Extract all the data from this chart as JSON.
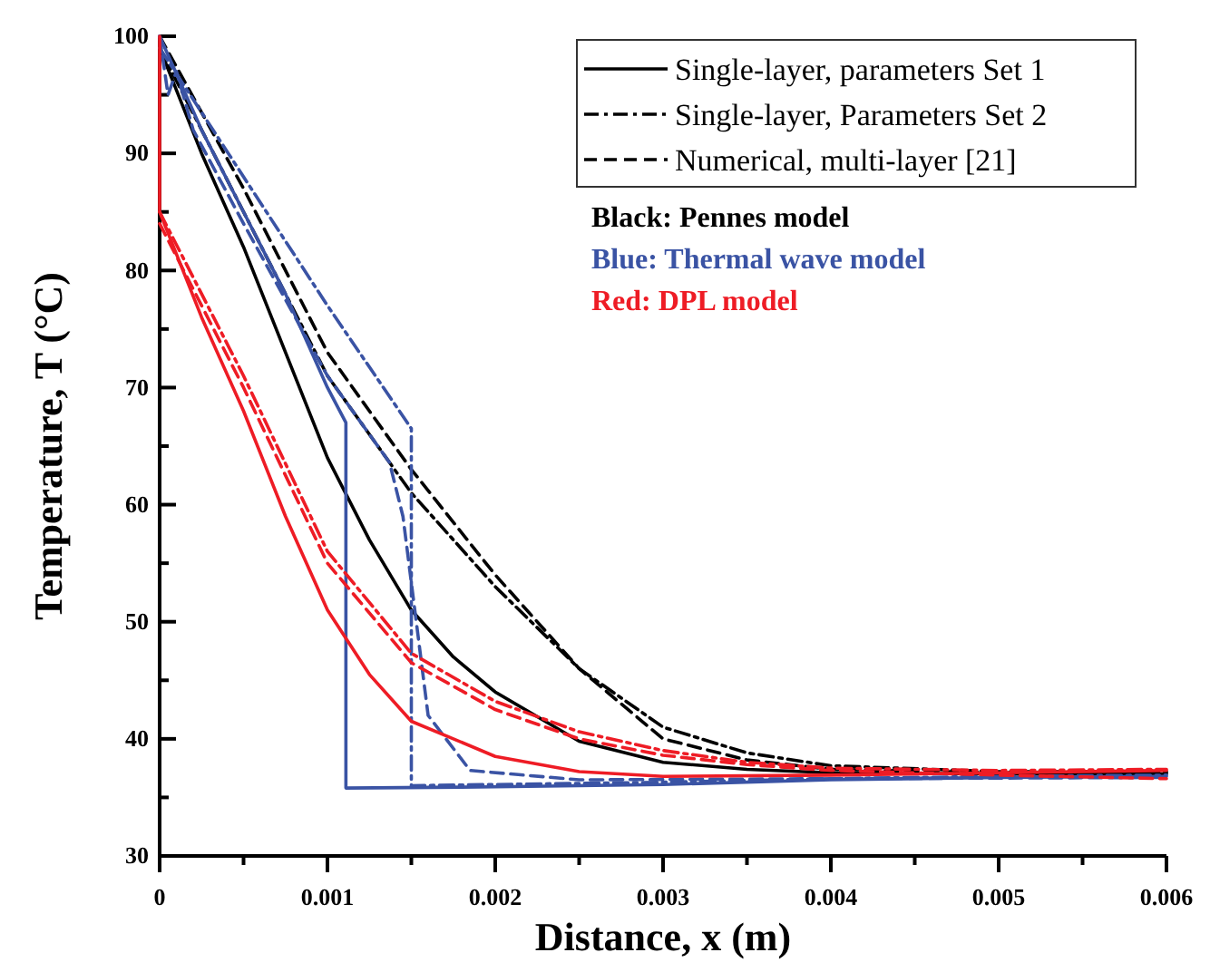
{
  "chart_data": {
    "type": "line",
    "xlabel": "Distance, x (m)",
    "ylabel": "Temperature, T (°C)",
    "xlim": [
      0,
      0.006
    ],
    "ylim": [
      30,
      100
    ],
    "xticks": [
      0,
      {
        "value": 0.0005,
        "label": null
      },
      0.001,
      {
        "value": 0.0015,
        "label": null
      },
      0.002,
      {
        "value": 0.0025,
        "label": null
      },
      0.003,
      {
        "value": 0.0035,
        "label": null
      },
      0.004,
      {
        "value": 0.0045,
        "label": null
      },
      0.005,
      {
        "value": 0.0055,
        "label": null
      },
      0.006
    ],
    "yticks": [
      30,
      {
        "value": 35,
        "label": null
      },
      40,
      {
        "value": 45,
        "label": null
      },
      50,
      {
        "value": 55,
        "label": null
      },
      60,
      {
        "value": 65,
        "label": null
      },
      70,
      {
        "value": 75,
        "label": null
      },
      80,
      {
        "value": 85,
        "label": null
      },
      90,
      {
        "value": 95,
        "label": null
      },
      100
    ],
    "grid": false,
    "legend": "top right",
    "marker": "none",
    "annotations": [
      "Black: Pennes model",
      "Blue: Thermal wave model",
      "Red: DPL model"
    ],
    "series": [
      {
        "name": "Single-layer, parameters Set 1",
        "color": "#000000",
        "line_style": "solid",
        "x": [
          0,
          0.00025,
          0.0005,
          0.00075,
          0.001,
          0.00125,
          0.0015,
          0.00175,
          0.002,
          0.0025,
          0.003,
          0.0035,
          0.004,
          0.005,
          0.006
        ],
        "values": [
          99,
          90,
          82,
          73,
          64,
          57,
          51,
          47,
          44,
          39.8,
          38,
          37.4,
          37.1,
          37,
          37
        ]
      },
      {
        "name": "Single-layer, Parameters Set 2",
        "color": "#000000",
        "line_style": "dashdot",
        "x": [
          0,
          0.0005,
          0.001,
          0.0015,
          0.002,
          0.0025,
          0.003,
          0.0035,
          0.004,
          0.005,
          0.006
        ],
        "values": [
          99,
          85,
          71,
          61,
          53,
          46,
          41,
          38.8,
          37.7,
          37.2,
          37.2
        ]
      },
      {
        "name": "Numerical, multi-layer [21]",
        "color": "#000000",
        "line_style": "dashed",
        "x": [
          0,
          0.0005,
          0.001,
          0.0015,
          0.002,
          0.0025,
          0.003,
          0.0035,
          0.004,
          0.005,
          0.006
        ],
        "values": [
          100,
          87,
          73,
          63,
          54,
          46,
          40,
          38.2,
          37.4,
          37.1,
          37.1
        ]
      },
      {
        "color": "#3a53a4",
        "line_style": "solid",
        "x": [
          0,
          0.00025,
          0.0005,
          0.00075,
          0.001,
          0.00111,
          0.00111,
          0.002,
          0.003,
          0.004,
          0.005,
          0.006
        ],
        "values": [
          100,
          92,
          85,
          78,
          70,
          67,
          35.8,
          35.9,
          36.1,
          36.5,
          36.7,
          36.8
        ]
      },
      {
        "color": "#3a53a4",
        "line_style": "dashdot",
        "x": [
          0,
          0.0005,
          0.001,
          0.0015,
          0.0015,
          0.002,
          0.003,
          0.004,
          0.005,
          0.006
        ],
        "values": [
          99,
          88,
          77,
          66.5,
          36,
          36.1,
          36.3,
          36.6,
          36.8,
          36.9
        ]
      },
      {
        "color": "#3a53a4",
        "line_style": "dashed",
        "x": [
          0,
          5e-05,
          0.0001,
          0.0002,
          0.0005,
          0.001,
          0.00137,
          0.00145,
          0.0016,
          0.00185,
          0.0025,
          0.004,
          0.006
        ],
        "values": [
          100,
          95,
          97,
          92,
          84,
          71,
          63.6,
          59,
          42,
          37.3,
          36.5,
          36.6,
          36.7
        ]
      },
      {
        "color": "#ee1c25",
        "line_style": "solid",
        "x": [
          0,
          0,
          0.00025,
          0.0005,
          0.00075,
          0.001,
          0.00125,
          0.0015,
          0.002,
          0.0025,
          0.003,
          0.004,
          0.006
        ],
        "values": [
          100,
          85,
          76,
          68,
          59,
          51,
          45.5,
          41.5,
          38.5,
          37.2,
          36.8,
          36.9,
          37.3
        ]
      },
      {
        "color": "#ee1c25",
        "line_style": "dashdot",
        "x": [
          0,
          0.0005,
          0.001,
          0.0015,
          0.002,
          0.0025,
          0.003,
          0.0035,
          0.004,
          0.005,
          0.006
        ],
        "values": [
          85,
          71,
          56,
          47.3,
          43.2,
          40.6,
          39,
          38,
          37.5,
          37.3,
          37.4
        ]
      },
      {
        "color": "#ee1c25",
        "line_style": "dashed",
        "x": [
          0,
          0.0005,
          0.001,
          0.0015,
          0.002,
          0.0025,
          0.003,
          0.0035,
          0.004,
          0.005,
          0.006
        ],
        "values": [
          84,
          70,
          55,
          46.5,
          42.5,
          40,
          38.6,
          37.8,
          37.3,
          36.9,
          36.6
        ]
      }
    ]
  }
}
